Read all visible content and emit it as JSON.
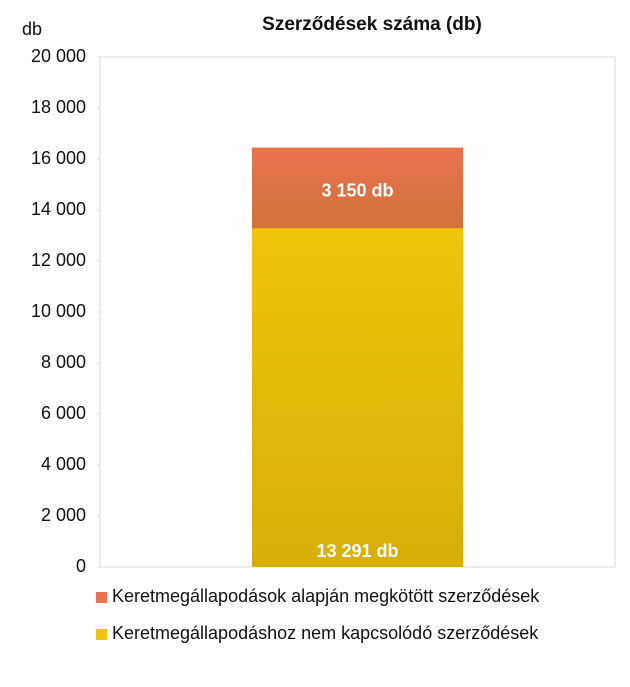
{
  "chart_data": {
    "type": "stacked-bar",
    "title": "Szerződések száma (db)",
    "y_label": "db",
    "categories": [
      null
    ],
    "series": [
      {
        "name": "Keretmegállapodáshoz nem kapcsolódó szerződések",
        "color": "#f0c40c",
        "values": [
          13291
        ],
        "value_labels": [
          "13 291 db"
        ]
      },
      {
        "name": "Keretmegállapodások alapján megkötött szerződések",
        "color": "#e8734f",
        "values": [
          3150
        ],
        "value_labels": [
          "3 150 db"
        ]
      }
    ],
    "ylim": [
      0,
      20000
    ],
    "yticks": [
      0,
      {
        "value": 2000,
        "label": "2 000"
      },
      {
        "value": 4000,
        "label": "4 000"
      },
      {
        "value": 6000,
        "label": "6 000"
      },
      {
        "value": 8000,
        "label": "8 000"
      },
      {
        "value": 10000,
        "label": "10 000"
      },
      {
        "value": 12000,
        "label": "12 000"
      },
      {
        "value": 14000,
        "label": "14 000"
      },
      {
        "value": 16000,
        "label": "16 000"
      },
      {
        "value": 18000,
        "label": "18 000"
      },
      {
        "value": 20000,
        "label": "20 000"
      }
    ],
    "grid": false,
    "legend": "bottom"
  }
}
